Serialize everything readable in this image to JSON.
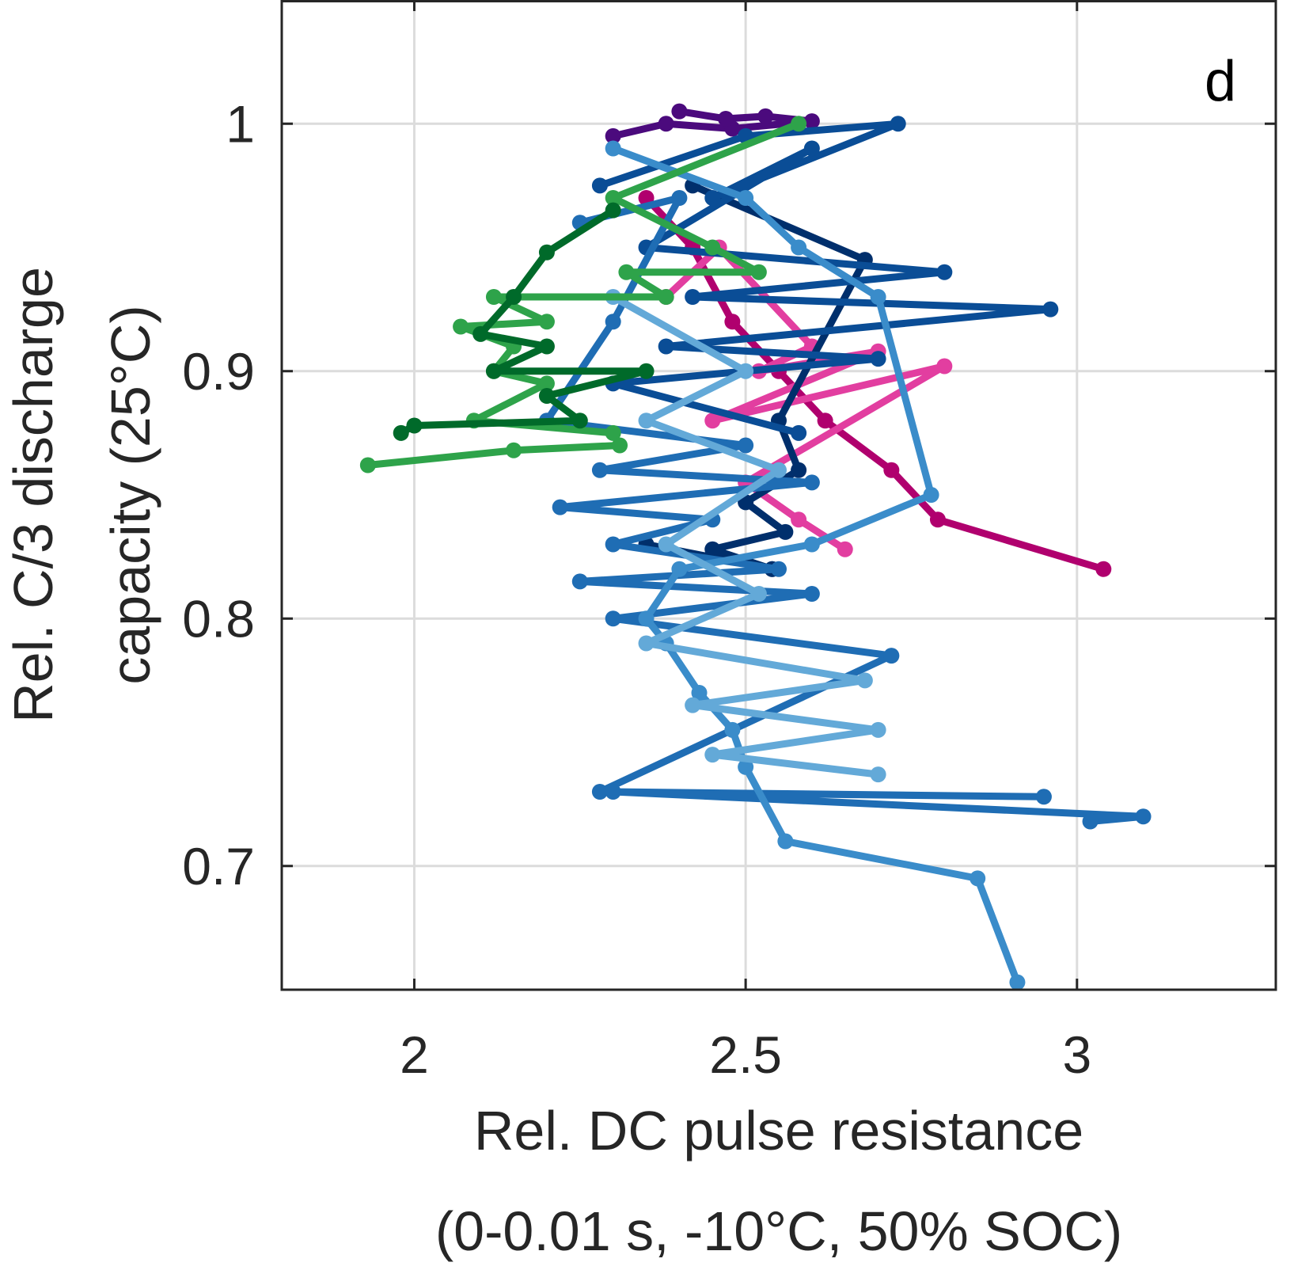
{
  "chart_data": {
    "type": "line",
    "panel_label": "d",
    "xlabel": [
      "Rel. DC pulse resistance",
      "(0-0.01 s, -10°C, 50% SOC)"
    ],
    "ylabel": [
      "Rel. C/3 discharge",
      "capacity (25°C)"
    ],
    "xlim": [
      1.8,
      3.3
    ],
    "ylim": [
      0.65,
      1.05
    ],
    "xticks": [
      2,
      2.5,
      3
    ],
    "xtick_labels": [
      "2",
      "2.5",
      "3"
    ],
    "yticks": [
      0.7,
      0.8,
      0.9,
      1.0
    ],
    "ytick_labels": [
      "0.7",
      "0.8",
      "0.9",
      "1"
    ],
    "grid": true,
    "legend": "none",
    "series": [
      {
        "color": "#4b0a7d",
        "x": [
          2.3,
          2.38,
          2.48,
          2.6,
          2.53,
          2.47,
          2.4
        ],
        "y": [
          0.995,
          1.0,
          0.998,
          1.001,
          1.003,
          1.002,
          1.005
        ]
      },
      {
        "color": "#b0006e",
        "x": [
          2.35,
          2.42,
          2.48,
          2.55,
          2.62,
          2.72,
          2.79,
          3.04
        ],
        "y": [
          0.97,
          0.95,
          0.92,
          0.9,
          0.88,
          0.86,
          0.84,
          0.82
        ]
      },
      {
        "color": "#e23ea0",
        "x": [
          2.38,
          2.46,
          2.6,
          2.52,
          2.7,
          2.45,
          2.8,
          2.5,
          2.58,
          2.65
        ],
        "y": [
          0.93,
          0.95,
          0.91,
          0.9,
          0.908,
          0.88,
          0.902,
          0.855,
          0.84,
          0.828
        ]
      },
      {
        "color": "#002f6c",
        "x": [
          2.42,
          2.68,
          2.55,
          2.58,
          2.5,
          2.56,
          2.45,
          2.54,
          2.35,
          2.54
        ],
        "y": [
          0.975,
          0.945,
          0.88,
          0.86,
          0.847,
          0.835,
          0.828,
          0.82,
          0.83,
          0.82
        ]
      },
      {
        "color": "#0a4d96",
        "x": [
          2.28,
          2.5,
          2.73,
          2.45,
          2.6,
          2.35,
          2.8,
          2.42,
          2.96,
          2.38,
          2.7,
          2.3,
          2.58
        ],
        "y": [
          0.975,
          0.995,
          1.0,
          0.97,
          0.99,
          0.95,
          0.94,
          0.93,
          0.925,
          0.91,
          0.905,
          0.895,
          0.875
        ]
      },
      {
        "color": "#1f6db4",
        "x": [
          2.25,
          2.4,
          2.3,
          2.2,
          2.5,
          2.28,
          2.6,
          2.22,
          2.45,
          2.3,
          2.55,
          2.25,
          2.6,
          2.3,
          2.72,
          2.28,
          2.95,
          2.3,
          3.1,
          3.02
        ],
        "y": [
          0.96,
          0.97,
          0.92,
          0.88,
          0.87,
          0.86,
          0.855,
          0.845,
          0.84,
          0.83,
          0.82,
          0.815,
          0.81,
          0.8,
          0.785,
          0.73,
          0.728,
          0.73,
          0.72,
          0.718
        ]
      },
      {
        "color": "#3a8cca",
        "x": [
          2.3,
          2.5,
          2.58,
          2.7,
          2.78,
          2.6,
          2.4,
          2.35,
          2.38,
          2.43,
          2.48,
          2.5,
          2.56,
          2.85,
          2.91
        ],
        "y": [
          0.99,
          0.97,
          0.95,
          0.93,
          0.85,
          0.83,
          0.82,
          0.8,
          0.79,
          0.77,
          0.755,
          0.74,
          0.71,
          0.695,
          0.653
        ]
      },
      {
        "color": "#63a9d8",
        "x": [
          2.3,
          2.5,
          2.35,
          2.55,
          2.38,
          2.52,
          2.35,
          2.68,
          2.42,
          2.7,
          2.45,
          2.7
        ],
        "y": [
          0.93,
          0.9,
          0.88,
          0.86,
          0.83,
          0.81,
          0.79,
          0.775,
          0.765,
          0.755,
          0.745,
          0.737
        ]
      },
      {
        "color": "#2ea34a",
        "x": [
          2.58,
          2.3,
          2.45,
          2.52,
          2.32,
          2.38,
          2.12,
          2.2,
          2.07,
          2.15,
          2.12,
          2.2,
          2.09,
          2.3,
          2.31,
          2.15,
          1.93
        ],
        "y": [
          1.0,
          0.97,
          0.95,
          0.94,
          0.94,
          0.93,
          0.93,
          0.92,
          0.918,
          0.91,
          0.9,
          0.895,
          0.88,
          0.875,
          0.87,
          0.868,
          0.862
        ]
      },
      {
        "color": "#006a2a",
        "x": [
          2.3,
          2.2,
          2.15,
          2.1,
          2.2,
          2.12,
          2.35,
          2.2,
          2.25,
          2.0,
          1.98
        ],
        "y": [
          0.965,
          0.948,
          0.93,
          0.915,
          0.91,
          0.9,
          0.9,
          0.89,
          0.88,
          0.878,
          0.875
        ]
      }
    ]
  }
}
